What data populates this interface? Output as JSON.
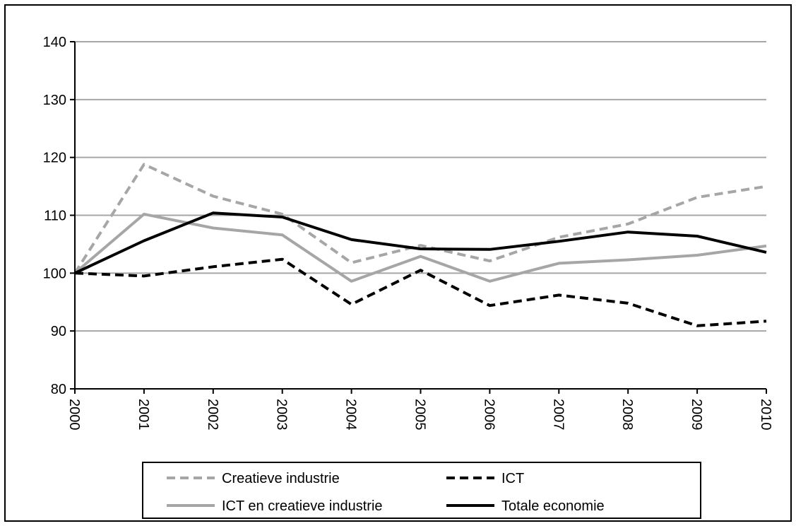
{
  "chart_data": {
    "type": "line",
    "title": "",
    "xlabel": "",
    "ylabel": "",
    "x": [
      "2000",
      "2001",
      "2002",
      "2003",
      "2004",
      "2005",
      "2006",
      "2007",
      "2008",
      "2009",
      "2010"
    ],
    "ylim": [
      80,
      140
    ],
    "yticks": [
      "80",
      "90",
      "100",
      "110",
      "120",
      "130",
      "140"
    ],
    "grid": true,
    "legend_position": "bottom",
    "series": [
      {
        "name": "Creatieve industrie",
        "color": "#a6a6a6",
        "dash": "dashed",
        "values": [
          100,
          118.8,
          113.3,
          110.2,
          101.8,
          104.8,
          102.1,
          106.2,
          108.5,
          113.1,
          115.0
        ]
      },
      {
        "name": "ICT",
        "color": "#000000",
        "dash": "dashed",
        "values": [
          100,
          99.5,
          101.1,
          102.4,
          94.6,
          100.5,
          94.4,
          96.2,
          94.8,
          90.9,
          91.7
        ]
      },
      {
        "name": "ICT en creatieve industrie",
        "color": "#a6a6a6",
        "dash": "solid",
        "values": [
          100,
          110.2,
          107.8,
          106.6,
          98.6,
          102.9,
          98.6,
          101.7,
          102.3,
          103.1,
          104.7
        ]
      },
      {
        "name": "Totale economie",
        "color": "#000000",
        "dash": "solid",
        "values": [
          100,
          105.6,
          110.4,
          109.7,
          105.8,
          104.2,
          104.1,
          105.5,
          107.1,
          106.4,
          103.6
        ]
      }
    ]
  }
}
